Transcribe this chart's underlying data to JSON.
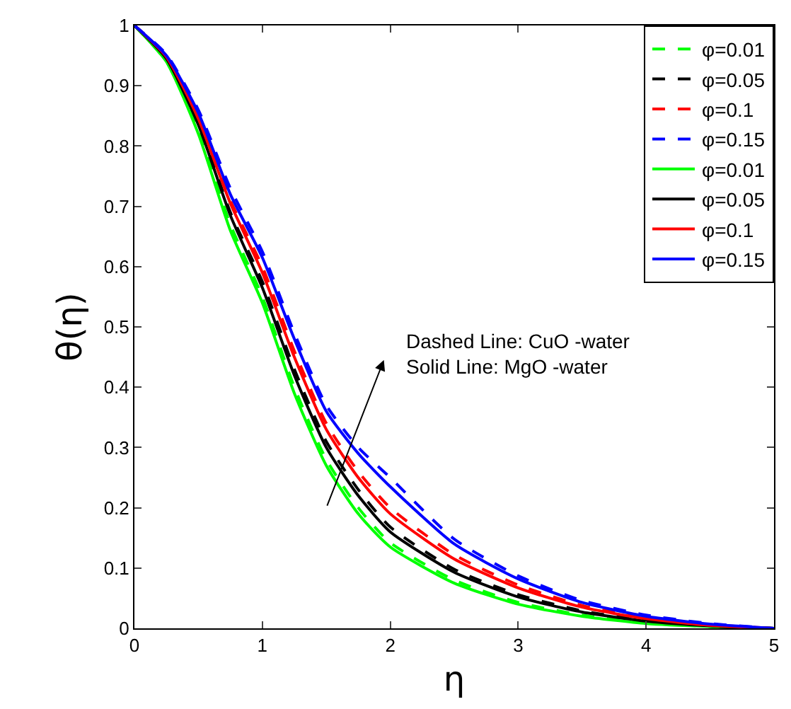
{
  "chart_data": {
    "type": "line",
    "xlabel": "η",
    "ylabel": "θ(η)",
    "x": [
      0,
      0.25,
      0.5,
      0.75,
      1,
      1.25,
      1.5,
      1.75,
      2,
      2.5,
      3,
      3.5,
      4,
      4.5,
      5
    ],
    "xlim": [
      0,
      5
    ],
    "xticks": [
      0,
      1,
      2,
      3,
      4,
      5
    ],
    "ylim": [
      0,
      1
    ],
    "yticks": [
      0,
      0.1,
      0.2,
      0.3,
      0.4,
      0.5,
      0.6,
      0.7,
      0.8,
      0.9,
      1
    ],
    "grid": false,
    "legend": "top right",
    "marker": "none",
    "series": [
      {
        "name": "φ=0.01",
        "color": "#00ff00",
        "line_style": "dashed",
        "values": [
          1,
          0.94,
          0.825,
          0.67,
          0.55,
          0.4,
          0.28,
          0.2,
          0.142,
          0.08,
          0.043,
          0.022,
          0.009,
          0.003,
          0
        ]
      },
      {
        "name": "φ=0.05",
        "color": "#000000",
        "line_style": "dashed",
        "values": [
          1,
          0.945,
          0.84,
          0.69,
          0.575,
          0.43,
          0.31,
          0.23,
          0.168,
          0.098,
          0.056,
          0.029,
          0.013,
          0.004,
          0
        ]
      },
      {
        "name": "φ=0.1",
        "color": "#ff0000",
        "line_style": "dashed",
        "values": [
          1,
          0.948,
          0.85,
          0.71,
          0.6,
          0.46,
          0.34,
          0.26,
          0.2,
          0.122,
          0.072,
          0.038,
          0.017,
          0.006,
          0
        ]
      },
      {
        "name": "φ=0.15",
        "color": "#0000ff",
        "line_style": "dashed",
        "values": [
          1,
          0.952,
          0.86,
          0.73,
          0.625,
          0.49,
          0.37,
          0.3,
          0.25,
          0.148,
          0.087,
          0.046,
          0.022,
          0.008,
          0
        ]
      },
      {
        "name": "φ=0.01",
        "color": "#00ff00",
        "line_style": "solid",
        "values": [
          1,
          0.94,
          0.82,
          0.66,
          0.54,
          0.39,
          0.27,
          0.19,
          0.135,
          0.075,
          0.04,
          0.02,
          0.008,
          0.003,
          0
        ]
      },
      {
        "name": "φ=0.05",
        "color": "#000000",
        "line_style": "solid",
        "values": [
          1,
          0.945,
          0.835,
          0.685,
          0.565,
          0.42,
          0.3,
          0.22,
          0.16,
          0.093,
          0.052,
          0.027,
          0.012,
          0.004,
          0
        ]
      },
      {
        "name": "φ=0.1",
        "color": "#ff0000",
        "line_style": "solid",
        "values": [
          1,
          0.948,
          0.845,
          0.705,
          0.59,
          0.45,
          0.33,
          0.25,
          0.19,
          0.115,
          0.067,
          0.035,
          0.016,
          0.005,
          0
        ]
      },
      {
        "name": "φ=0.15",
        "color": "#0000ff",
        "line_style": "solid",
        "values": [
          1,
          0.95,
          0.855,
          0.72,
          0.615,
          0.48,
          0.36,
          0.29,
          0.235,
          0.14,
          0.082,
          0.043,
          0.02,
          0.007,
          0
        ]
      }
    ],
    "annotations": [
      "Dashed Line: CuO -water",
      "Solid Line: MgO -water"
    ]
  }
}
